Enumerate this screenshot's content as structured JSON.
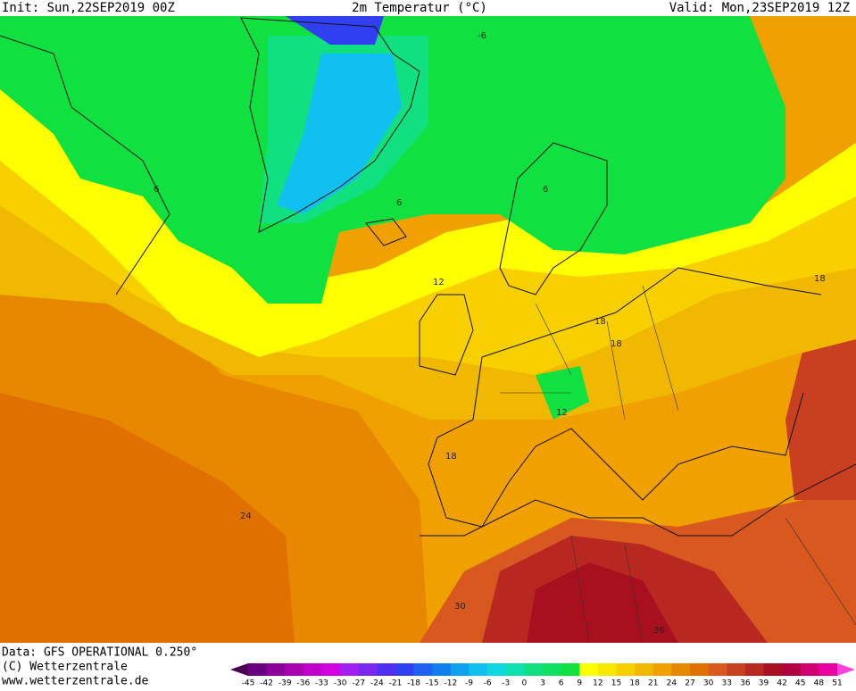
{
  "header": {
    "init": "Init: Sun,22SEP2019 00Z",
    "title": "2m Temperatur (°C)",
    "valid": "Valid: Mon,23SEP2019 12Z"
  },
  "map": {
    "contour_labels": [
      -6,
      6,
      6,
      6,
      12,
      18,
      18,
      12,
      18,
      24,
      30,
      36,
      18
    ]
  },
  "footer": {
    "data": "Data: GFS OPERATIONAL 0.250°",
    "copyright": "(C) Wetterzentrale",
    "url": "www.wetterzentrale.de"
  },
  "colorbar": {
    "ticks": [
      -45,
      -42,
      -39,
      -36,
      -33,
      -30,
      -27,
      -24,
      -21,
      -18,
      -15,
      -12,
      -9,
      -6,
      -3,
      0,
      3,
      6,
      9,
      12,
      15,
      18,
      21,
      24,
      27,
      30,
      33,
      36,
      39,
      42,
      45,
      48,
      51
    ],
    "colors": [
      "#4b0055",
      "#6a0080",
      "#8a0099",
      "#a800b0",
      "#c000c8",
      "#d000e0",
      "#a020f0",
      "#7a28f0",
      "#5030f0",
      "#3040f0",
      "#2060f0",
      "#1080f0",
      "#10a0f0",
      "#10c0f0",
      "#10d8e0",
      "#10e0b0",
      "#10e080",
      "#10e060",
      "#10e040",
      "#ffff00",
      "#f8e800",
      "#f8d000",
      "#f0b800",
      "#f0a000",
      "#e88800",
      "#e07000",
      "#d85820",
      "#c84020",
      "#b82820",
      "#a81020",
      "#b00040",
      "#d00070",
      "#e800a0",
      "#ff40e0"
    ]
  }
}
